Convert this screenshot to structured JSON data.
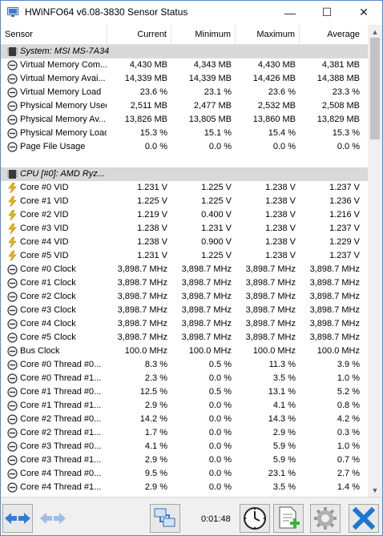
{
  "window": {
    "title": "HWiNFO64 v6.08-3830 Sensor Status",
    "minimize_glyph": "—",
    "maximize_glyph": "☐",
    "close_glyph": "✕"
  },
  "columns": [
    "Sensor",
    "Current",
    "Minimum",
    "Maximum",
    "Average"
  ],
  "rows": [
    {
      "kind": "group",
      "icon": "chip-icon",
      "label": "System: MSI MS-7A34"
    },
    {
      "icon": "gauge-icon",
      "label": "Virtual Memory Com...",
      "cur": "4,430 MB",
      "min": "4,343 MB",
      "max": "4,430 MB",
      "avg": "4,381 MB"
    },
    {
      "icon": "gauge-icon",
      "label": "Virtual Memory Avai...",
      "cur": "14,339 MB",
      "min": "14,339 MB",
      "max": "14,426 MB",
      "avg": "14,388 MB"
    },
    {
      "icon": "gauge-icon",
      "label": "Virtual Memory Load",
      "cur": "23.6 %",
      "min": "23.1 %",
      "max": "23.6 %",
      "avg": "23.3 %"
    },
    {
      "icon": "gauge-icon",
      "label": "Physical Memory Used",
      "cur": "2,511 MB",
      "min": "2,477 MB",
      "max": "2,532 MB",
      "avg": "2,508 MB"
    },
    {
      "icon": "gauge-icon",
      "label": "Physical Memory Av...",
      "cur": "13,826 MB",
      "min": "13,805 MB",
      "max": "13,860 MB",
      "avg": "13,829 MB"
    },
    {
      "icon": "gauge-icon",
      "label": "Physical Memory Load",
      "cur": "15.3 %",
      "min": "15.1 %",
      "max": "15.4 %",
      "avg": "15.3 %"
    },
    {
      "icon": "gauge-icon",
      "label": "Page File Usage",
      "cur": "0.0 %",
      "min": "0.0 %",
      "max": "0.0 %",
      "avg": "0.0 %"
    },
    {
      "kind": "blank"
    },
    {
      "kind": "group",
      "icon": "chip-icon",
      "label": "CPU [#0]: AMD Ryz..."
    },
    {
      "icon": "bolt-icon",
      "label": "Core #0 VID",
      "cur": "1.231 V",
      "min": "1.225 V",
      "max": "1.238 V",
      "avg": "1.237 V"
    },
    {
      "icon": "bolt-icon",
      "label": "Core #1 VID",
      "cur": "1.225 V",
      "min": "1.225 V",
      "max": "1.238 V",
      "avg": "1.236 V"
    },
    {
      "icon": "bolt-icon",
      "label": "Core #2 VID",
      "cur": "1.219 V",
      "min": "0.400 V",
      "max": "1.238 V",
      "avg": "1.216 V"
    },
    {
      "icon": "bolt-icon",
      "label": "Core #3 VID",
      "cur": "1.238 V",
      "min": "1.231 V",
      "max": "1.238 V",
      "avg": "1.237 V"
    },
    {
      "icon": "bolt-icon",
      "label": "Core #4 VID",
      "cur": "1.238 V",
      "min": "0.900 V",
      "max": "1.238 V",
      "avg": "1.229 V"
    },
    {
      "icon": "bolt-icon",
      "label": "Core #5 VID",
      "cur": "1.231 V",
      "min": "1.225 V",
      "max": "1.238 V",
      "avg": "1.237 V"
    },
    {
      "icon": "gauge-icon",
      "label": "Core #0 Clock",
      "cur": "3,898.7 MHz",
      "min": "3,898.7 MHz",
      "max": "3,898.7 MHz",
      "avg": "3,898.7 MHz"
    },
    {
      "icon": "gauge-icon",
      "label": "Core #1 Clock",
      "cur": "3,898.7 MHz",
      "min": "3,898.7 MHz",
      "max": "3,898.7 MHz",
      "avg": "3,898.7 MHz"
    },
    {
      "icon": "gauge-icon",
      "label": "Core #2 Clock",
      "cur": "3,898.7 MHz",
      "min": "3,898.7 MHz",
      "max": "3,898.7 MHz",
      "avg": "3,898.7 MHz"
    },
    {
      "icon": "gauge-icon",
      "label": "Core #3 Clock",
      "cur": "3,898.7 MHz",
      "min": "3,898.7 MHz",
      "max": "3,898.7 MHz",
      "avg": "3,898.7 MHz"
    },
    {
      "icon": "gauge-icon",
      "label": "Core #4 Clock",
      "cur": "3,898.7 MHz",
      "min": "3,898.7 MHz",
      "max": "3,898.7 MHz",
      "avg": "3,898.7 MHz"
    },
    {
      "icon": "gauge-icon",
      "label": "Core #5 Clock",
      "cur": "3,898.7 MHz",
      "min": "3,898.7 MHz",
      "max": "3,898.7 MHz",
      "avg": "3,898.7 MHz"
    },
    {
      "icon": "gauge-icon",
      "label": "Bus Clock",
      "cur": "100.0 MHz",
      "min": "100.0 MHz",
      "max": "100.0 MHz",
      "avg": "100.0 MHz"
    },
    {
      "icon": "gauge-icon",
      "label": "Core #0 Thread #0...",
      "cur": "8.3 %",
      "min": "0.5 %",
      "max": "11.3 %",
      "avg": "3.9 %"
    },
    {
      "icon": "gauge-icon",
      "label": "Core #0 Thread #1...",
      "cur": "2.3 %",
      "min": "0.0 %",
      "max": "3.5 %",
      "avg": "1.0 %"
    },
    {
      "icon": "gauge-icon",
      "label": "Core #1 Thread #0...",
      "cur": "12.5 %",
      "min": "0.5 %",
      "max": "13.1 %",
      "avg": "5.2 %"
    },
    {
      "icon": "gauge-icon",
      "label": "Core #1 Thread #1...",
      "cur": "2.9 %",
      "min": "0.0 %",
      "max": "4.1 %",
      "avg": "0.8 %"
    },
    {
      "icon": "gauge-icon",
      "label": "Core #2 Thread #0...",
      "cur": "14.2 %",
      "min": "0.0 %",
      "max": "14.3 %",
      "avg": "4.2 %"
    },
    {
      "icon": "gauge-icon",
      "label": "Core #2 Thread #1...",
      "cur": "1.7 %",
      "min": "0.0 %",
      "max": "2.9 %",
      "avg": "0.3 %"
    },
    {
      "icon": "gauge-icon",
      "label": "Core #3 Thread #0...",
      "cur": "4.1 %",
      "min": "0.0 %",
      "max": "5.9 %",
      "avg": "1.0 %"
    },
    {
      "icon": "gauge-icon",
      "label": "Core #3 Thread #1...",
      "cur": "2.9 %",
      "min": "0.0 %",
      "max": "5.9 %",
      "avg": "0.7 %"
    },
    {
      "icon": "gauge-icon",
      "label": "Core #4 Thread #0...",
      "cur": "9.5 %",
      "min": "0.0 %",
      "max": "23.1 %",
      "avg": "2.7 %"
    },
    {
      "icon": "gauge-icon",
      "label": "Core #4 Thread #1...",
      "cur": "2.9 %",
      "min": "0.0 %",
      "max": "3.5 %",
      "avg": "1.4 %"
    }
  ],
  "toolbar": {
    "elapsed_time": "0:01:48",
    "buttons": [
      "arrows-left-right-icon",
      "arrows-left-right-disabled-icon",
      "network-computers-icon",
      "clock-icon",
      "add-report-icon",
      "settings-gear-icon",
      "close-x-icon"
    ]
  },
  "colors": {
    "group_row": "#d9d9d9",
    "window_border": "#5a8ac6",
    "bolt": "#f2b400",
    "close_x": "#1a78d2"
  }
}
